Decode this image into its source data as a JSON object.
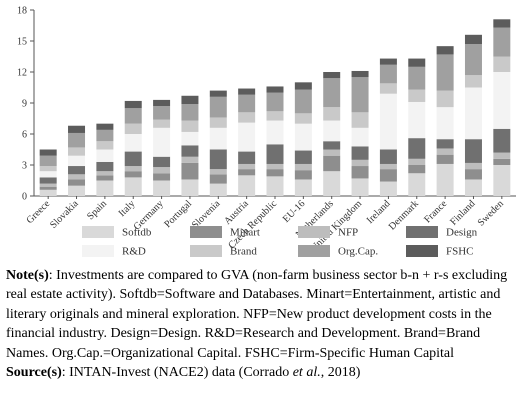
{
  "chart_data": {
    "type": "bar",
    "stacked": true,
    "categories": [
      "Greece",
      "Slovakia",
      "Spain",
      "Italy",
      "Germany",
      "Portugal",
      "Slovenia",
      "Austria",
      "Czech Republic",
      "EU-16",
      "Netherlands",
      "United Kingdom",
      "Ireland",
      "Denmark",
      "France",
      "Finland",
      "Sweden"
    ],
    "series": [
      {
        "name": "Softdb",
        "color": "#d9d9d9",
        "values": [
          0.6,
          1.0,
          1.5,
          1.8,
          1.5,
          1.6,
          1.2,
          2.0,
          1.9,
          1.6,
          2.4,
          1.7,
          1.4,
          2.2,
          3.1,
          1.6,
          3.0
        ]
      },
      {
        "name": "Minart",
        "color": "#8e8e8e",
        "values": [
          0.3,
          0.6,
          0.5,
          0.6,
          0.7,
          1.6,
          0.9,
          0.6,
          0.7,
          0.9,
          1.5,
          1.2,
          1.2,
          0.8,
          0.9,
          1.0,
          0.6
        ]
      },
      {
        "name": "NFP",
        "color": "#bdbdbd",
        "values": [
          0.3,
          0.5,
          0.4,
          0.5,
          0.6,
          0.6,
          0.5,
          0.5,
          0.5,
          0.6,
          0.6,
          0.6,
          0.5,
          0.6,
          0.6,
          0.6,
          0.6
        ]
      },
      {
        "name": "Design",
        "color": "#707070",
        "values": [
          0.6,
          0.8,
          0.9,
          1.4,
          1.0,
          1.1,
          1.9,
          1.2,
          1.9,
          1.3,
          0.8,
          1.3,
          1.4,
          2.0,
          0.9,
          2.3,
          2.3
        ]
      },
      {
        "name": "R&D",
        "color": "#f3f3f3",
        "values": [
          0.6,
          1.0,
          1.2,
          1.7,
          2.8,
          1.3,
          2.1,
          2.8,
          2.3,
          2.6,
          2.0,
          1.8,
          5.4,
          3.5,
          3.1,
          5.0,
          5.5
        ]
      },
      {
        "name": "Brand",
        "color": "#c9c9c9",
        "values": [
          0.5,
          0.8,
          0.8,
          1.0,
          0.8,
          1.1,
          1.0,
          1.0,
          0.9,
          1.0,
          1.3,
          1.5,
          1.0,
          1.2,
          1.6,
          1.2,
          1.5
        ]
      },
      {
        "name": "Org.Cap.",
        "color": "#a0a0a0",
        "values": [
          1.0,
          1.4,
          1.1,
          1.5,
          1.3,
          1.6,
          2.0,
          1.7,
          1.8,
          2.3,
          2.8,
          3.4,
          1.8,
          2.2,
          3.5,
          3.0,
          2.8
        ]
      },
      {
        "name": "FSHC",
        "color": "#5c5c5c",
        "values": [
          0.6,
          0.7,
          0.6,
          0.7,
          0.6,
          0.8,
          0.6,
          0.6,
          0.6,
          0.7,
          0.6,
          0.6,
          0.6,
          0.8,
          0.8,
          0.9,
          0.8
        ]
      }
    ],
    "ylim": [
      0,
      18
    ],
    "yticks": [
      0,
      3,
      6,
      9,
      12,
      15,
      18
    ]
  },
  "notes": {
    "label": "Note(s)",
    "text": ": Investments are compared to GVA (non-farm business sector b-n + r-s excluding real estate activity). Softdb=Software and Databases. Minart=Entertainment, artistic and literary originals and mineral exploration. NFP=New product development costs in the financial industry. Design=Design. R&D=Research and Development. Brand=Brand Names. Org.Cap.=Organizational Capital. FSHC=Firm-Specific Human Capital"
  },
  "source": {
    "label": "Source(s)",
    "text": ": INTAN-Invest (NACE2) data (Corrado ",
    "italic": "et al.",
    "end": ", 2018)"
  }
}
